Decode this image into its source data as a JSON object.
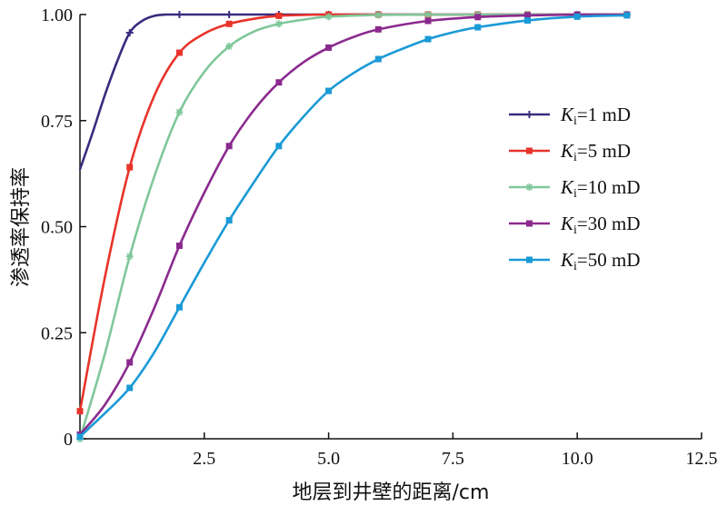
{
  "chart_data": {
    "type": "line",
    "title": "",
    "xlabel": "地层到井壁的距离/cm",
    "ylabel": "渗透率保持率",
    "xlim": [
      0,
      12.5
    ],
    "ylim": [
      0,
      1.0
    ],
    "x_ticks": [
      "2.5",
      "5.0",
      "7.5",
      "10.0",
      "12.5"
    ],
    "y_ticks": [
      "0",
      "0.25",
      "0.50",
      "0.75",
      "1.00"
    ],
    "grid": false,
    "legend_position": "right",
    "series": [
      {
        "name": "Ki=1 mD",
        "legend_main": "K",
        "legend_sub": "i",
        "legend_rest": "=1 mD",
        "color": "#3b2a7e",
        "marker": "plus",
        "x": [
          0,
          0.25,
          0.5,
          0.75,
          1.0,
          1.25,
          1.5,
          1.75,
          2,
          3,
          4,
          5,
          6,
          7,
          8,
          9,
          10,
          11
        ],
        "y": [
          0.635,
          0.72,
          0.81,
          0.89,
          0.957,
          0.985,
          0.997,
          1.0,
          1.0,
          1.0,
          1.0,
          1.0,
          1.0,
          1.0,
          1.0,
          1.0,
          1.0,
          1.0
        ]
      },
      {
        "name": "Ki=5 mD",
        "legend_main": "K",
        "legend_sub": "i",
        "legend_rest": "=5 mD",
        "color": "#e8332a",
        "marker": "square",
        "x": [
          0,
          0.5,
          1,
          1.5,
          2,
          2.5,
          3,
          3.5,
          4,
          5,
          6,
          7,
          8,
          9,
          10,
          11
        ],
        "y": [
          0.065,
          0.38,
          0.64,
          0.81,
          0.91,
          0.955,
          0.978,
          0.99,
          0.997,
          1.0,
          1.0,
          1.0,
          1.0,
          1.0,
          1.0,
          1.0
        ]
      },
      {
        "name": "Ki=10 mD",
        "legend_main": "K",
        "legend_sub": "i",
        "legend_rest": "=10 mD",
        "color": "#7fc79a",
        "marker": "star",
        "x": [
          0,
          0.5,
          1,
          1.5,
          2,
          2.5,
          3,
          3.5,
          4,
          4.5,
          5,
          6,
          7,
          8,
          9,
          10,
          11
        ],
        "y": [
          0.0,
          0.2,
          0.43,
          0.62,
          0.77,
          0.865,
          0.925,
          0.96,
          0.978,
          0.988,
          0.995,
          0.999,
          1.0,
          1.0,
          1.0,
          1.0,
          1.0
        ]
      },
      {
        "name": "Ki=30 mD",
        "legend_main": "K",
        "legend_sub": "i",
        "legend_rest": "=30 mD",
        "color": "#8b2a8e",
        "marker": "square",
        "x": [
          0,
          0.5,
          1,
          1.5,
          2,
          2.5,
          3,
          3.5,
          4,
          4.5,
          5,
          5.5,
          6,
          7,
          8,
          9,
          10,
          11
        ],
        "y": [
          0.01,
          0.08,
          0.18,
          0.31,
          0.455,
          0.58,
          0.69,
          0.775,
          0.84,
          0.888,
          0.922,
          0.947,
          0.965,
          0.985,
          0.994,
          0.998,
          1.0,
          1.0
        ]
      },
      {
        "name": "Ki=50 mD",
        "legend_main": "K",
        "legend_sub": "i",
        "legend_rest": "=50 mD",
        "color": "#1a9ad6",
        "marker": "square",
        "x": [
          0,
          0.5,
          1,
          1.5,
          2,
          2.5,
          3,
          3.5,
          4,
          4.5,
          5,
          5.5,
          6,
          6.5,
          7,
          7.5,
          8,
          9,
          10,
          11
        ],
        "y": [
          0.005,
          0.06,
          0.12,
          0.205,
          0.31,
          0.415,
          0.515,
          0.605,
          0.69,
          0.76,
          0.82,
          0.862,
          0.895,
          0.92,
          0.942,
          0.958,
          0.97,
          0.986,
          0.995,
          0.998
        ]
      }
    ]
  }
}
